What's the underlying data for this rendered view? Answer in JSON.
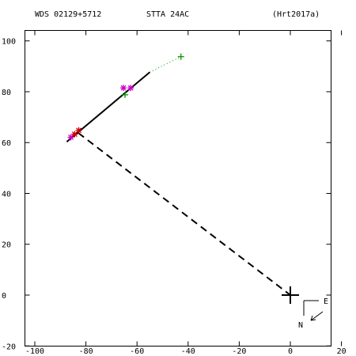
{
  "header": {
    "left": "WDS 02129+5712",
    "center": "STTA 24AC",
    "right": "(Hrt2017a)"
  },
  "compass": {
    "east": "E",
    "north": "N"
  },
  "chart_data": {
    "type": "scatter",
    "xlim": [
      -100,
      20
    ],
    "ylim": [
      -20,
      100
    ],
    "x_ticks": [
      -100,
      -80,
      -60,
      -40,
      -20,
      0,
      20
    ],
    "y_ticks": [
      -20,
      0,
      20,
      40,
      60,
      80,
      100
    ],
    "x_tick_labels": [
      "-100",
      "-80",
      "-60",
      "-40",
      "-20",
      "0",
      "20"
    ],
    "y_tick_labels": [
      "-20",
      "0",
      "20",
      "40",
      "60",
      "80",
      "100"
    ],
    "primary_star": {
      "x": 0,
      "y": 0
    },
    "orbit_segment": {
      "x": [
        -87.5,
        -55
      ],
      "y": [
        60.3,
        87.7
      ]
    },
    "dotted_extension": {
      "x": [
        -55,
        -42.8
      ],
      "y": [
        87.7,
        93.8
      ]
    },
    "dashed_line": {
      "x": [
        -83,
        0
      ],
      "y": [
        63.8,
        0
      ]
    },
    "measurement_points": [
      {
        "x": -85.9,
        "y": 62.1,
        "color": "#cc00cc",
        "marker": "asterisk"
      },
      {
        "x": -84.4,
        "y": 63.3,
        "color": "#cc0000",
        "marker": "asterisk"
      },
      {
        "x": -82.8,
        "y": 64.8,
        "color": "#cc0000",
        "marker": "asterisk"
      },
      {
        "x": -65.3,
        "y": 81.5,
        "color": "#cc00cc",
        "marker": "asterisk"
      },
      {
        "x": -62.5,
        "y": 81.5,
        "color": "#cc00cc",
        "marker": "asterisk"
      },
      {
        "x": -64.7,
        "y": 78.8,
        "color": "#009900",
        "marker": "plus"
      },
      {
        "x": -42.8,
        "y": 93.8,
        "color": "#009900",
        "marker": "plus"
      }
    ]
  },
  "colors": {
    "axes": "#000000",
    "magenta": "#cc00cc",
    "red": "#cc0000",
    "green": "#009900"
  }
}
